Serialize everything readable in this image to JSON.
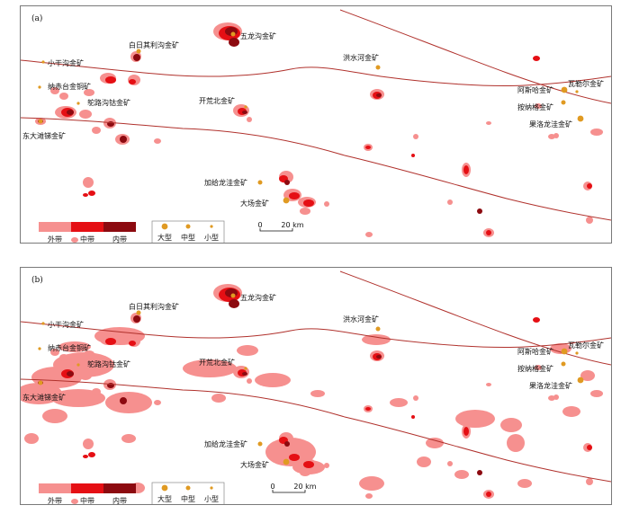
{
  "colors": {
    "outer_zone": "#f6908f",
    "middle_zone": "#e50f14",
    "inner_zone": "#8c0a10",
    "fault_line": "#b0312c",
    "deposit_marker": "#e09a22"
  },
  "legend": {
    "zones": [
      "外带",
      "中带",
      "内带"
    ],
    "sizes": [
      "大型",
      "中型",
      "小型"
    ]
  },
  "scale_bar": {
    "zero": "0",
    "length": "20 km"
  },
  "panels": [
    {
      "tag": "(a)",
      "deposits": [
        "五龙沟金矿",
        "白日其利沟金矿",
        "小干沟金矿",
        "纳赤台金铜矿",
        "鸵路沟钴金矿",
        "东大滩锑金矿",
        "开荒北金矿",
        "洪水河金矿",
        "阿斯哈金矿",
        "瓦勒尔金矿",
        "按纳格金矿",
        "果洛龙洼金矿",
        "加给龙洼金矿",
        "大场金矿"
      ]
    },
    {
      "tag": "(b)",
      "deposits": [
        "五龙沟金矿",
        "白日其利沟金矿",
        "小干沟金矿",
        "纳赤台金铜矿",
        "鸵路沟钴金矿",
        "东大滩锑金矿",
        "开荒北金矿",
        "洪水河金矿",
        "阿斯哈金矿",
        "瓦勒尔金矿",
        "按纳格金矿",
        "果洛龙洼金矿",
        "加给龙洼金矿",
        "大场金矿"
      ]
    }
  ]
}
